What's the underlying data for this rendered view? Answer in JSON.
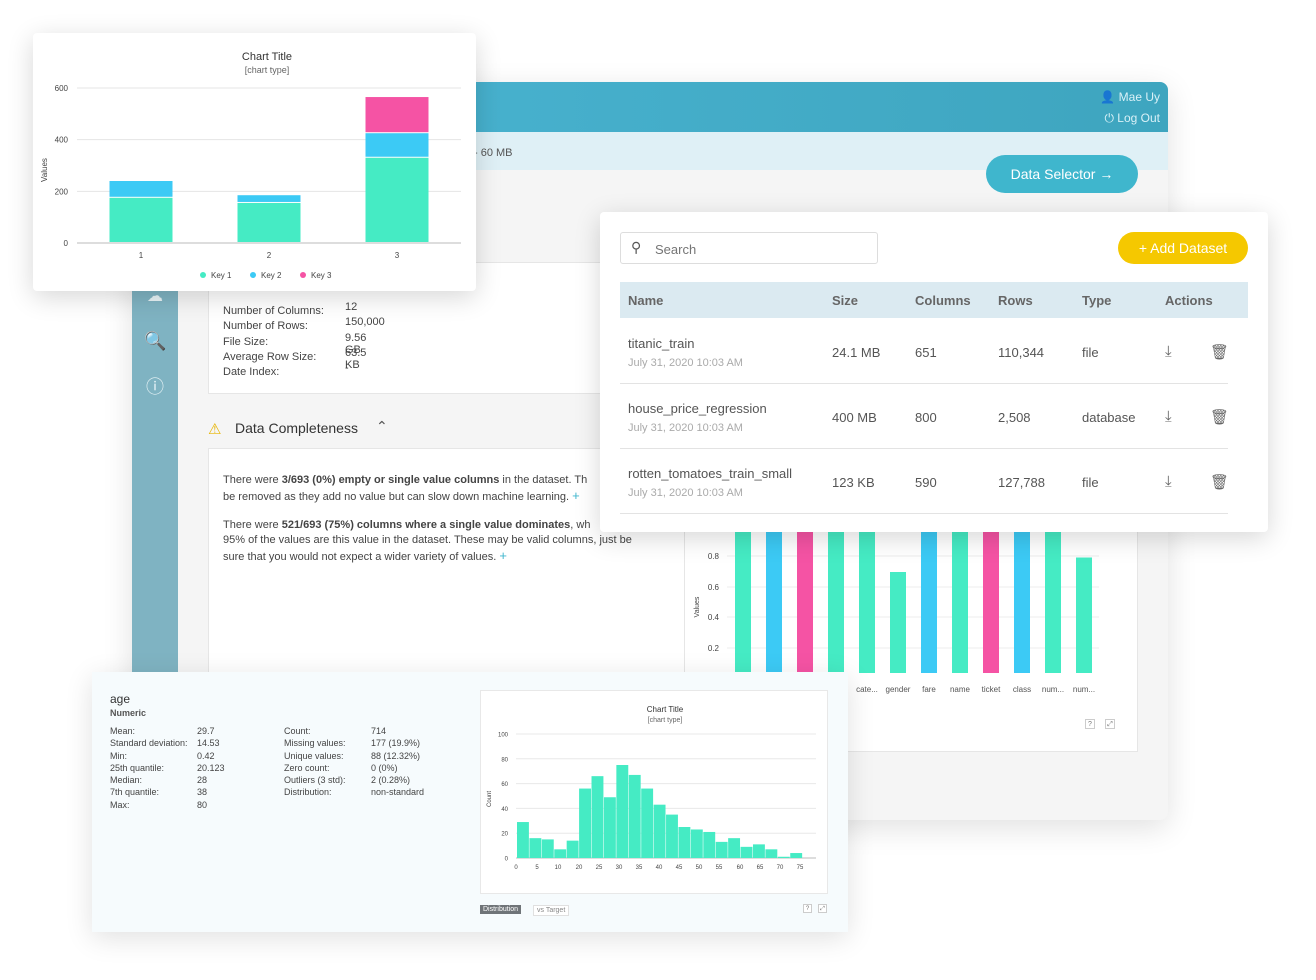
{
  "header": {
    "user": "Mae Uy",
    "logout": "Log Out",
    "size_fragment": "- 60 MB"
  },
  "data_selector_label": "Data Selector →",
  "summary": {
    "truncated_heading": "",
    "items": [
      {
        "label": "Number of Columns:",
        "value": "12"
      },
      {
        "label": "Number of Rows:",
        "value": "150,000"
      },
      {
        "label": "File Size:",
        "value": "9.56 GB"
      },
      {
        "label": "Average Row Size:",
        "value": "63.5 KB"
      },
      {
        "label": "Date Index:",
        "value": "-"
      }
    ]
  },
  "completeness": {
    "title": "Data Completeness",
    "p1_pre": "There were ",
    "p1_bold": "3/693 (0%) empty or single value columns",
    "p1_post": " in the dataset. Th",
    "p1_line2": "be removed as they add no value but can slow down machine learning.",
    "p2_pre": "There were ",
    "p2_bold": "521/693 (75%) columns where a single value dominates",
    "p2_post": ", wh",
    "p2_line2": "95% of the values are this value in the dataset. These may be valid columns, just be",
    "p2_line3": "sure that you would not expect a wider variety of values."
  },
  "bg_chart": {
    "ylabel": "Values",
    "ticks": [
      "0.8",
      "0.6",
      "0.4",
      "0.2"
    ],
    "categories": [
      "cate...",
      "gender",
      "fare",
      "name",
      "ticket",
      "class",
      "num...",
      "num..."
    ]
  },
  "datasets": {
    "search_placeholder": "Search",
    "add_label": "+ Add Dataset",
    "columns": [
      "Name",
      "Size",
      "Columns",
      "Rows",
      "Type",
      "Actions"
    ],
    "rows": [
      {
        "name": "titanic_train",
        "date": "July 31, 2020 10:03 AM",
        "size": "24.1 MB",
        "columns": "651",
        "rows": "110,344",
        "type": "file"
      },
      {
        "name": "house_price_regression",
        "date": "July 31, 2020 10:03 AM",
        "size": "400 MB",
        "columns": "800",
        "rows": "2,508",
        "type": "database"
      },
      {
        "name": "rotten_tomatoes_train_small",
        "date": "July 31, 2020 10:03 AM",
        "size": "123 KB",
        "columns": "590",
        "rows": "127,788",
        "type": "file"
      }
    ]
  },
  "colors": {
    "teal": "#45ebc4",
    "blue": "#3ccaf5",
    "pink": "#f553a4",
    "yellow": "#f5c800",
    "accent": "#3fb6cd"
  },
  "chart_data": [
    {
      "type": "bar",
      "stacked": true,
      "title": "Chart Title",
      "subtitle": "[chart type]",
      "ylabel": "Values",
      "ylim": [
        0,
        600
      ],
      "yticks": [
        0,
        200,
        400,
        600
      ],
      "categories": [
        "1",
        "2",
        "3"
      ],
      "series": [
        {
          "name": "Key 1",
          "values": [
            175,
            155,
            330
          ]
        },
        {
          "name": "Key 2",
          "values": [
            65,
            30,
            95
          ]
        },
        {
          "name": "Key 3",
          "values": [
            0,
            0,
            140
          ]
        }
      ],
      "legend": "bottom"
    },
    {
      "type": "bar",
      "title": "Chart Title",
      "subtitle": "[chart type]",
      "ylabel": "Count",
      "ylim": [
        0,
        100
      ],
      "yticks": [
        0,
        20,
        40,
        60,
        80,
        100
      ],
      "xticks": [
        "0",
        "5",
        "10",
        "20",
        "25",
        "30",
        "35",
        "40",
        "45",
        "50",
        "55",
        "60",
        "65",
        "70",
        "75"
      ],
      "values": [
        29,
        16,
        15,
        7,
        14,
        56,
        66,
        49,
        75,
        67,
        56,
        43,
        35,
        25,
        23,
        21,
        13,
        16,
        9,
        11,
        7,
        1,
        4
      ]
    }
  ],
  "age": {
    "name": "age",
    "kind": "Numeric",
    "left": [
      {
        "label": "Mean:",
        "value": "29.7"
      },
      {
        "label": "Standard deviation:",
        "value": "14.53"
      },
      {
        "label": "Min:",
        "value": "0.42"
      },
      {
        "label": "25th quantile:",
        "value": "20.123"
      },
      {
        "label": "Median:",
        "value": "28"
      },
      {
        "label": "7th quantile:",
        "value": "38"
      },
      {
        "label": "Max:",
        "value": "80"
      }
    ],
    "right": [
      {
        "label": "Count:",
        "value": "714"
      },
      {
        "label": "Missing values:",
        "value": "177 (19.9%)"
      },
      {
        "label": "Unique values:",
        "value": "88 (12.32%)"
      },
      {
        "label": "Zero count:",
        "value": "0 (0%)"
      },
      {
        "label": "Outliers (3 std):",
        "value": "2 (0.28%)"
      },
      {
        "label": "Distribution:",
        "value": "non-standard"
      }
    ],
    "tab_distribution": "Distribution",
    "tab_target": "vs Target",
    "help": "?"
  }
}
